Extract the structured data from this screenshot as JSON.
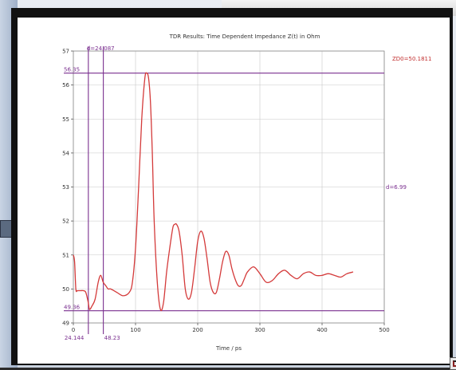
{
  "chart_data": {
    "type": "line",
    "title": "TDR Results: Time Dependent Impedance Z(t) in Ohm",
    "xlabel": "Time / ps",
    "ylabel": "",
    "xlim": [
      0,
      500
    ],
    "ylim": [
      49,
      57
    ],
    "x_ticks": [
      0,
      100,
      200,
      300,
      400,
      500
    ],
    "y_ticks": [
      49,
      50,
      51,
      52,
      53,
      54,
      55,
      56,
      57
    ],
    "grid": true,
    "legend": "ZD0=50.1811",
    "colors": {
      "series": "#d43a3a",
      "markers": "#7a2f8f"
    },
    "series": [
      {
        "x": [
          0,
          2,
          4,
          6,
          8,
          12,
          16,
          20,
          24,
          26,
          30,
          35,
          40,
          44,
          48,
          52,
          56,
          60,
          70,
          80,
          90,
          95,
          100,
          105,
          110,
          115,
          118,
          121,
          124,
          127,
          130,
          135,
          140,
          145,
          150,
          155,
          160,
          163,
          166,
          170,
          175,
          180,
          185,
          190,
          195,
          200,
          205,
          210,
          215,
          220,
          225,
          230,
          235,
          240,
          245,
          250,
          255,
          260,
          265,
          270,
          275,
          280,
          290,
          300,
          310,
          320,
          330,
          340,
          350,
          360,
          370,
          380,
          390,
          400,
          410,
          420,
          430,
          440,
          450
        ],
        "y": [
          51.0,
          50.8,
          50.0,
          49.95,
          49.95,
          49.95,
          49.95,
          49.9,
          49.6,
          49.4,
          49.5,
          49.7,
          50.2,
          50.4,
          50.2,
          50.1,
          50.0,
          50.0,
          49.9,
          49.8,
          49.9,
          50.2,
          51.2,
          53.0,
          55.0,
          56.2,
          56.35,
          56.2,
          55.5,
          54.0,
          52.0,
          50.2,
          49.4,
          49.6,
          50.5,
          51.2,
          51.8,
          51.9,
          51.9,
          51.7,
          51.0,
          50.0,
          49.7,
          49.9,
          50.6,
          51.4,
          51.7,
          51.5,
          50.9,
          50.2,
          49.9,
          49.9,
          50.3,
          50.8,
          51.1,
          51.0,
          50.6,
          50.3,
          50.1,
          50.1,
          50.3,
          50.5,
          50.65,
          50.45,
          50.2,
          50.25,
          50.45,
          50.55,
          50.4,
          50.3,
          50.45,
          50.5,
          50.4,
          50.4,
          50.45,
          50.4,
          50.35,
          50.45,
          50.5
        ]
      }
    ],
    "annotations": {
      "vertical_markers": [
        24.144,
        48.23
      ],
      "vertical_labels": [
        "24.144",
        "48.23"
      ],
      "delta_label": "d=24.087",
      "horizontal_markers": [
        56.35,
        49.36
      ],
      "horizontal_labels": [
        "56.35",
        "49.36"
      ],
      "delta_h_label": "d=6.99"
    }
  }
}
